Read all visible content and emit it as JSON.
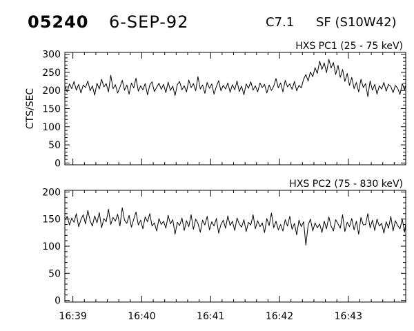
{
  "header": {
    "event_id": "05240",
    "date": "6-SEP-92",
    "flare_class": "C7.1",
    "location": "SF (S10W42)"
  },
  "colors": {
    "trace": "#000000",
    "axes": "#000000",
    "background": "#ffffff"
  },
  "chart_data": [
    {
      "type": "line",
      "title": "HXS PC1 (25 - 75 keV)",
      "xlabel": "",
      "ylabel": "CTS/SEC",
      "xlim": [
        "16:38:53",
        "16:43:50"
      ],
      "ylim": [
        -5,
        305
      ],
      "x_ticks": [
        "16:39",
        "16:40",
        "16:41",
        "16:42",
        "16:43"
      ],
      "y_ticks": [
        0,
        50,
        100,
        150,
        200,
        250,
        300
      ],
      "grid": false,
      "legend": "none",
      "series": [
        {
          "x_start": "16:38:53",
          "x_step_seconds": 2,
          "values": [
            212,
            196,
            218,
            205,
            225,
            201,
            217,
            193,
            215,
            208,
            226,
            199,
            213,
            187,
            220,
            204,
            231,
            210,
            219,
            196,
            242,
            205,
            216,
            193,
            209,
            228,
            201,
            215,
            190,
            221,
            207,
            234,
            198,
            213,
            202,
            219,
            188,
            215,
            224,
            197,
            209,
            220,
            203,
            217,
            194,
            223,
            200,
            212,
            186,
            216,
            225,
            202,
            213,
            196,
            229,
            208,
            219,
            199,
            238,
            204,
            215,
            192,
            222,
            206,
            218,
            190,
            211,
            227,
            199,
            214,
            204,
            221,
            195,
            216,
            202,
            226,
            197,
            212,
            188,
            218,
            206,
            224,
            201,
            213,
            196,
            221,
            208,
            217,
            193,
            215,
            200,
            212,
            233,
            207,
            221,
            196,
            228,
            210,
            218,
            203,
            225,
            199,
            214,
            207,
            231,
            244,
            226,
            251,
            238,
            263,
            247,
            281,
            258,
            276,
            249,
            286,
            262,
            277,
            244,
            269,
            236,
            258,
            225,
            247,
            214,
            236,
            205,
            222,
            196,
            231,
            208,
            219,
            183,
            226,
            201,
            217,
            190,
            213,
            204,
            222,
            198,
            217,
            211,
            194,
            214,
            206,
            189,
            219,
            202,
            215,
            197,
            211,
            178,
            208,
            193,
            216,
            186,
            210,
            199,
            214,
            181,
            206,
            195,
            218,
            188,
            211,
            202,
            220,
            193,
            216,
            186,
            210,
            177,
            205,
            196,
            219,
            188,
            213,
            200,
            223,
            190,
            215,
            206,
            224,
            198,
            217,
            212,
            201,
            209,
            193,
            214,
            187,
            206,
            199,
            218,
            192,
            212,
            204,
            228,
            188,
            210,
            195,
            237,
            183,
            215,
            201,
            219,
            176,
            212,
            205,
            208
          ]
        }
      ]
    },
    {
      "type": "line",
      "title": "HXS PC2 (75 - 830 keV)",
      "xlabel": "",
      "ylabel": "",
      "xlim": [
        "16:38:53",
        "16:43:50"
      ],
      "ylim": [
        -3,
        203
      ],
      "x_ticks": [
        "16:39",
        "16:40",
        "16:41",
        "16:42",
        "16:43"
      ],
      "y_ticks": [
        0,
        50,
        100,
        150,
        200
      ],
      "grid": false,
      "legend": "none",
      "series": [
        {
          "x_start": "16:38:53",
          "x_step_seconds": 2,
          "values": [
            148,
            155,
            139,
            152,
            144,
            160,
            136,
            149,
            158,
            141,
            166,
            147,
            137,
            156,
            143,
            162,
            134,
            151,
            145,
            168,
            140,
            153,
            146,
            159,
            137,
            171,
            148,
            142,
            157,
            135,
            150,
            163,
            139,
            148,
            132,
            154,
            145,
            160,
            137,
            143,
            128,
            151,
            140,
            146,
            133,
            157,
            141,
            149,
            122,
            144,
            138,
            152,
            129,
            147,
            136,
            158,
            131,
            150,
            142,
            126,
            148,
            139,
            155,
            130,
            145,
            137,
            151,
            124,
            140,
            148,
            133,
            156,
            138,
            146,
            129,
            152,
            141,
            135,
            149,
            127,
            144,
            139,
            158,
            132,
            147,
            136,
            143,
            125,
            151,
            138,
            161,
            134,
            146,
            130,
            140,
            128,
            149,
            137,
            155,
            131,
            142,
            121,
            148,
            136,
            145,
            102,
            139,
            150,
            128,
            143,
            134,
            141,
            125,
            146,
            132,
            154,
            137,
            128,
            149,
            141,
            133,
            158,
            127,
            144,
            136,
            151,
            130,
            146,
            122,
            153,
            139,
            140,
            160,
            134,
            148,
            129,
            150,
            137,
            142,
            124,
            145,
            133,
            155,
            128,
            147,
            138,
            132,
            150,
            126,
            141,
            137,
            153,
            121,
            144,
            135,
            148,
            130,
            139,
            124,
            151,
            136,
            145,
            127,
            150,
            133,
            143,
            138,
            155,
            129,
            146,
            134,
            141,
            122,
            149,
            137,
            154,
            128,
            143,
            131,
            147,
            125,
            152,
            136,
            142,
            130,
            146,
            139,
            121,
            148,
            133,
            153,
            127,
            144,
            135,
            140,
            119,
            147,
            138,
            132,
            141,
            128,
            145,
            124,
            139,
            134,
            143
          ]
        }
      ]
    }
  ]
}
